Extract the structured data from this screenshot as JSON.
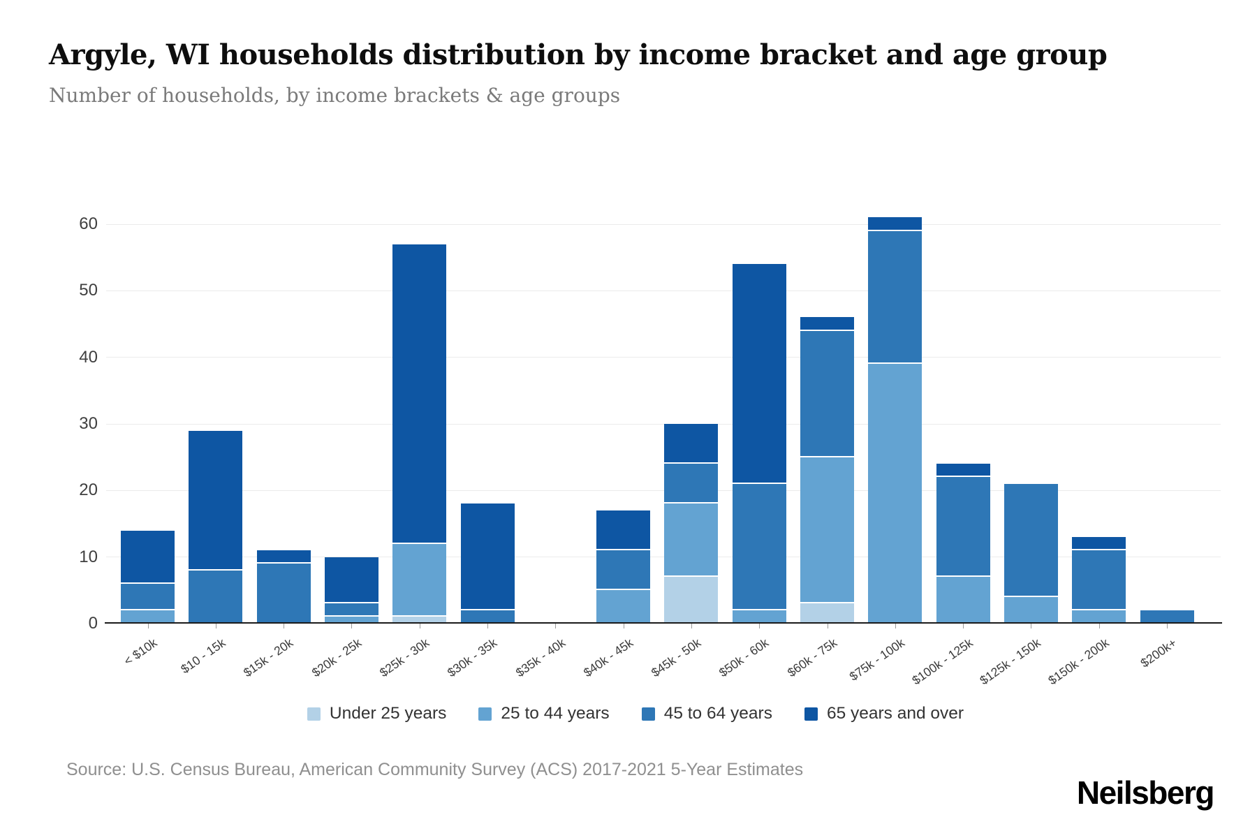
{
  "header": {
    "title": "Argyle, WI households distribution by income bracket and age group",
    "subtitle": "Number of households, by income brackets & age groups"
  },
  "footer": {
    "source": "Source: U.S. Census Bureau, American Community Survey (ACS) 2017-2021 5-Year Estimates",
    "brand": "Neilsberg"
  },
  "chart_data": {
    "type": "bar",
    "stacked": true,
    "title": "Argyle, WI households distribution by income bracket and age group",
    "subtitle": "Number of households, by income brackets & age groups",
    "xlabel": "",
    "ylabel": "Number of households",
    "ylim": [
      0,
      60
    ],
    "yticks": [
      0,
      10,
      20,
      30,
      40,
      50,
      60
    ],
    "grid": "horizontal",
    "legend_position": "bottom",
    "categories": [
      "< $10k",
      "$10 - 15k",
      "$15k - 20k",
      "$20k - 25k",
      "$25k - 30k",
      "$30k - 35k",
      "$35k - 40k",
      "$40k - 45k",
      "$45k - 50k",
      "$50k - 60k",
      "$60k - 75k",
      "$75k - 100k",
      "$100k - 125k",
      "$125k - 150k",
      "$150k - 200k",
      "$200k+"
    ],
    "series": [
      {
        "name": "Under 25 years",
        "color": "#b3d1e7",
        "values": [
          0,
          0,
          0,
          0,
          1,
          0,
          0,
          0,
          7,
          0,
          3,
          0,
          0,
          0,
          0,
          0
        ]
      },
      {
        "name": "25 to 44 years",
        "color": "#63a3d2",
        "values": [
          2,
          0,
          0,
          1,
          11,
          0,
          0,
          5,
          11,
          2,
          22,
          39,
          7,
          4,
          2,
          0
        ]
      },
      {
        "name": "45 to 64 years",
        "color": "#2e77b6",
        "values": [
          4,
          8,
          9,
          2,
          0,
          2,
          0,
          6,
          6,
          19,
          19,
          20,
          15,
          17,
          9,
          2
        ]
      },
      {
        "name": "65 years and over",
        "color": "#0e56a3",
        "values": [
          8,
          21,
          2,
          7,
          45,
          16,
          0,
          6,
          6,
          33,
          2,
          2,
          2,
          0,
          2,
          0
        ]
      }
    ],
    "totals": [
      14,
      29,
      11,
      10,
      57,
      18,
      0,
      17,
      30,
      54,
      46,
      61,
      24,
      21,
      13,
      2
    ]
  }
}
